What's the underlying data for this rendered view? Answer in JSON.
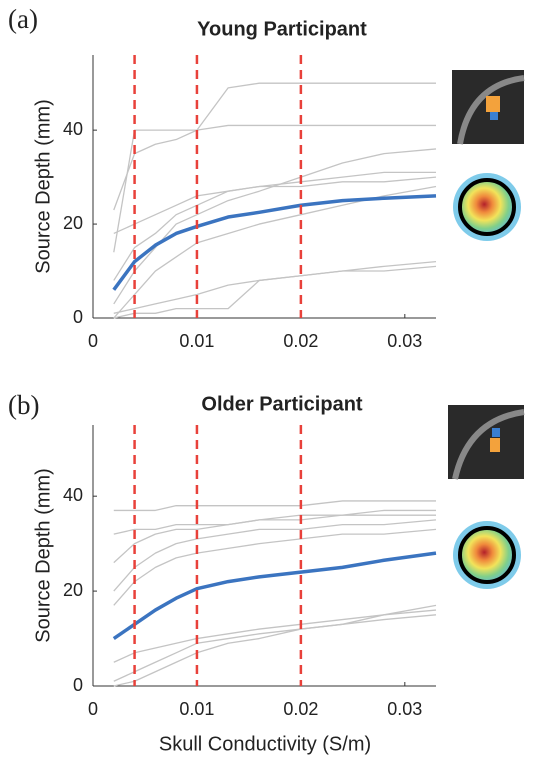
{
  "chart_data": [
    {
      "type": "line",
      "panel_label": "(a)",
      "title": "Young Participant",
      "y_label": "Source Depth (mm)",
      "x": [
        0.002,
        0.004,
        0.006,
        0.008,
        0.01,
        0.013,
        0.016,
        0.02,
        0.024,
        0.028,
        0.033
      ],
      "series": [
        {
          "color": "#c4c4c4",
          "values": [
            23,
            35,
            37,
            38,
            40,
            41,
            41,
            41,
            41,
            41,
            41
          ]
        },
        {
          "color": "#c4c4c4",
          "values": [
            14,
            40,
            40,
            40,
            40,
            49,
            50,
            50,
            50,
            50,
            50
          ]
        },
        {
          "color": "#c4c4c4",
          "values": [
            3,
            10,
            15,
            20,
            22,
            25,
            27,
            30,
            33,
            35,
            36
          ]
        },
        {
          "color": "#c4c4c4",
          "values": [
            8,
            15,
            18,
            22,
            24,
            27,
            28,
            29,
            30,
            31,
            31
          ]
        },
        {
          "color": "#c4c4c4",
          "values": [
            0,
            5,
            10,
            13,
            16,
            18,
            20,
            22,
            24,
            26,
            28
          ]
        },
        {
          "color": "#c4c4c4",
          "values": [
            1,
            2,
            3,
            4,
            5,
            7,
            8,
            9,
            10,
            11,
            12
          ]
        },
        {
          "color": "#c4c4c4",
          "values": [
            0,
            1,
            1,
            2,
            2,
            2,
            8,
            9,
            10,
            10,
            11
          ]
        },
        {
          "color": "#c4c4c4",
          "values": [
            18,
            20,
            22,
            24,
            26,
            27,
            28,
            28,
            29,
            29,
            30
          ]
        },
        {
          "color": "#3b74c0",
          "line_width": 3.5,
          "values": [
            6,
            12,
            15.5,
            18,
            19.5,
            21.5,
            22.5,
            24,
            25,
            25.5,
            26
          ]
        }
      ],
      "xlim": [
        0,
        0.033
      ],
      "ylim": [
        0,
        56
      ],
      "xticks": [
        0,
        0.01,
        0.02,
        0.03
      ],
      "yticks": [
        0,
        20,
        40
      ],
      "vlines": {
        "color": "#e8413a",
        "values": [
          0.004,
          0.01,
          0.02
        ]
      }
    },
    {
      "type": "line",
      "panel_label": "(b)",
      "title": "Older Participant",
      "y_label": "Source Depth (mm)",
      "x_label": "Skull Conductivity (S/m)",
      "x": [
        0.002,
        0.004,
        0.006,
        0.008,
        0.01,
        0.013,
        0.016,
        0.02,
        0.024,
        0.028,
        0.033
      ],
      "series": [
        {
          "color": "#c4c4c4",
          "values": [
            37,
            37,
            37,
            38,
            38,
            38,
            38,
            38,
            39,
            39,
            39
          ]
        },
        {
          "color": "#c4c4c4",
          "values": [
            32,
            33,
            33,
            34,
            34,
            34,
            35,
            35,
            36,
            36,
            36
          ]
        },
        {
          "color": "#c4c4c4",
          "values": [
            20,
            25,
            28,
            30,
            31,
            32,
            33,
            33,
            34,
            34,
            35
          ]
        },
        {
          "color": "#c4c4c4",
          "values": [
            17,
            22,
            25,
            27,
            28,
            29,
            30,
            31,
            32,
            32,
            33
          ]
        },
        {
          "color": "#c4c4c4",
          "values": [
            5,
            7,
            8,
            9,
            10,
            11,
            12,
            13,
            14,
            15,
            16
          ]
        },
        {
          "color": "#c4c4c4",
          "values": [
            1,
            3,
            5,
            7,
            9,
            10,
            11,
            12,
            13,
            14,
            15
          ]
        },
        {
          "color": "#c4c4c4",
          "values": [
            0,
            1,
            3,
            5,
            7,
            9,
            10,
            12,
            13,
            15,
            17
          ]
        },
        {
          "color": "#c4c4c4",
          "values": [
            26,
            30,
            32,
            33,
            33,
            34,
            35,
            36,
            36,
            37,
            37
          ]
        },
        {
          "color": "#3b74c0",
          "line_width": 3.5,
          "values": [
            10,
            13,
            16,
            18.5,
            20.5,
            22,
            23,
            24,
            25,
            26.5,
            28
          ]
        }
      ],
      "xlim": [
        0,
        0.033
      ],
      "ylim": [
        0,
        55
      ],
      "xticks": [
        0,
        0.01,
        0.02,
        0.03
      ],
      "yticks": [
        0,
        20,
        40
      ],
      "vlines": {
        "color": "#e8413a",
        "values": [
          0.004,
          0.01,
          0.02
        ]
      }
    }
  ]
}
